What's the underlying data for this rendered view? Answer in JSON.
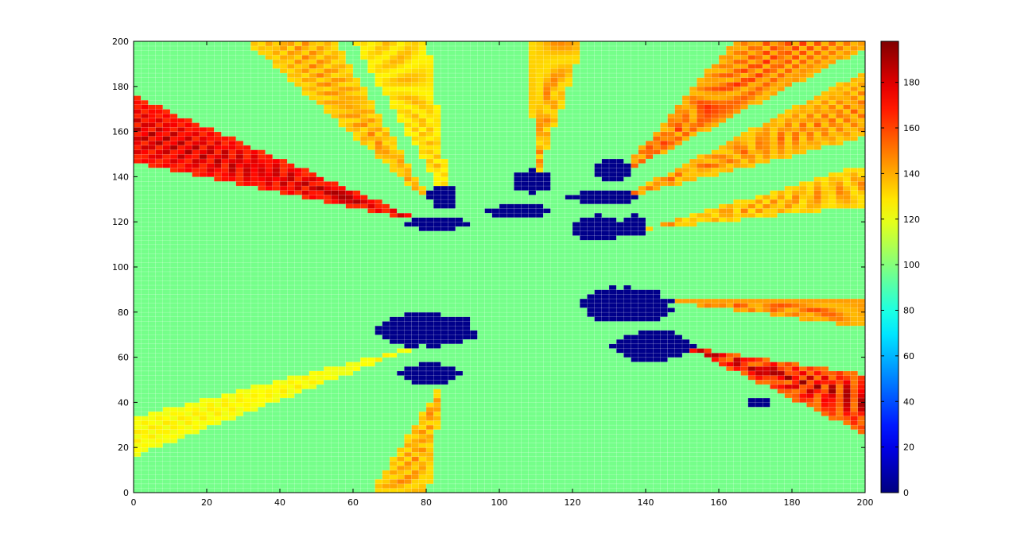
{
  "chart_data": {
    "type": "heatmap",
    "title": "",
    "xlabel": "",
    "ylabel": "",
    "xlim": [
      0,
      200
    ],
    "ylim": [
      0,
      200
    ],
    "x_ticks": [
      0,
      20,
      40,
      60,
      80,
      100,
      120,
      140,
      160,
      180,
      200
    ],
    "y_ticks": [
      0,
      20,
      40,
      60,
      80,
      100,
      120,
      140,
      160,
      180,
      200
    ],
    "grid_resolution": 2,
    "colormap": "jet",
    "colorbar": {
      "range": [
        0,
        198
      ],
      "ticks": [
        0,
        20,
        40,
        60,
        80,
        100,
        120,
        140,
        160,
        180
      ],
      "placement": "right"
    },
    "background_value": 97,
    "cluster_value": 2,
    "obstacle_clusters": [
      {
        "cx": 84.5,
        "cy": 131,
        "rx": 4,
        "ry": 6
      },
      {
        "cx": 83,
        "cy": 119.5,
        "rx": 9,
        "ry": 3
      },
      {
        "cx": 109,
        "cy": 138,
        "rx": 6,
        "ry": 5
      },
      {
        "cx": 105,
        "cy": 125,
        "rx": 10,
        "ry": 3
      },
      {
        "cx": 131,
        "cy": 143,
        "rx": 5,
        "ry": 5
      },
      {
        "cx": 129,
        "cy": 131,
        "rx": 10,
        "ry": 3
      },
      {
        "cx": 127,
        "cy": 117,
        "rx": 7,
        "ry": 6
      },
      {
        "cx": 137,
        "cy": 118,
        "rx": 3,
        "ry": 5
      },
      {
        "cx": 135,
        "cy": 83,
        "rx": 13,
        "ry": 8
      },
      {
        "cx": 80,
        "cy": 72,
        "rx": 14,
        "ry": 8
      },
      {
        "cx": 81,
        "cy": 52.5,
        "rx": 8,
        "ry": 5
      },
      {
        "cx": 142,
        "cy": 65,
        "rx": 11,
        "ry": 7
      },
      {
        "cx": 171,
        "cy": 40,
        "rx": 3,
        "ry": 2
      }
    ],
    "shadow_wedges": [
      {
        "ox": 80,
        "oy": 120,
        "a0": 145,
        "a1": 162,
        "base": 150,
        "peak": 192
      },
      {
        "ox": 82,
        "oy": 127,
        "a0": 110,
        "a1": 125,
        "base": 120,
        "peak": 150
      },
      {
        "ox": 87,
        "oy": 126,
        "a0": 95,
        "a1": 110,
        "base": 118,
        "peak": 140
      },
      {
        "ox": 110,
        "oy": 138,
        "a0": 78,
        "a1": 92,
        "base": 120,
        "peak": 150
      },
      {
        "ox": 132,
        "oy": 140,
        "a0": 40,
        "a1": 62,
        "base": 122,
        "peak": 165
      },
      {
        "ox": 132,
        "oy": 130,
        "a0": 22,
        "a1": 40,
        "base": 122,
        "peak": 155
      },
      {
        "ox": 137,
        "oy": 116,
        "a0": 10,
        "a1": 25,
        "base": 118,
        "peak": 150
      },
      {
        "ox": 145,
        "oy": 85,
        "a0": -12,
        "a1": 2,
        "base": 125,
        "peak": 160
      },
      {
        "ox": 150,
        "oy": 65,
        "a0": -38,
        "a1": -14,
        "base": 125,
        "peak": 195
      },
      {
        "ox": 85,
        "oy": 50,
        "a0": -112,
        "a1": -95,
        "base": 120,
        "peak": 150
      },
      {
        "ox": 80,
        "oy": 66,
        "a0": -158,
        "a1": -148,
        "base": 115,
        "peak": 130
      }
    ]
  }
}
